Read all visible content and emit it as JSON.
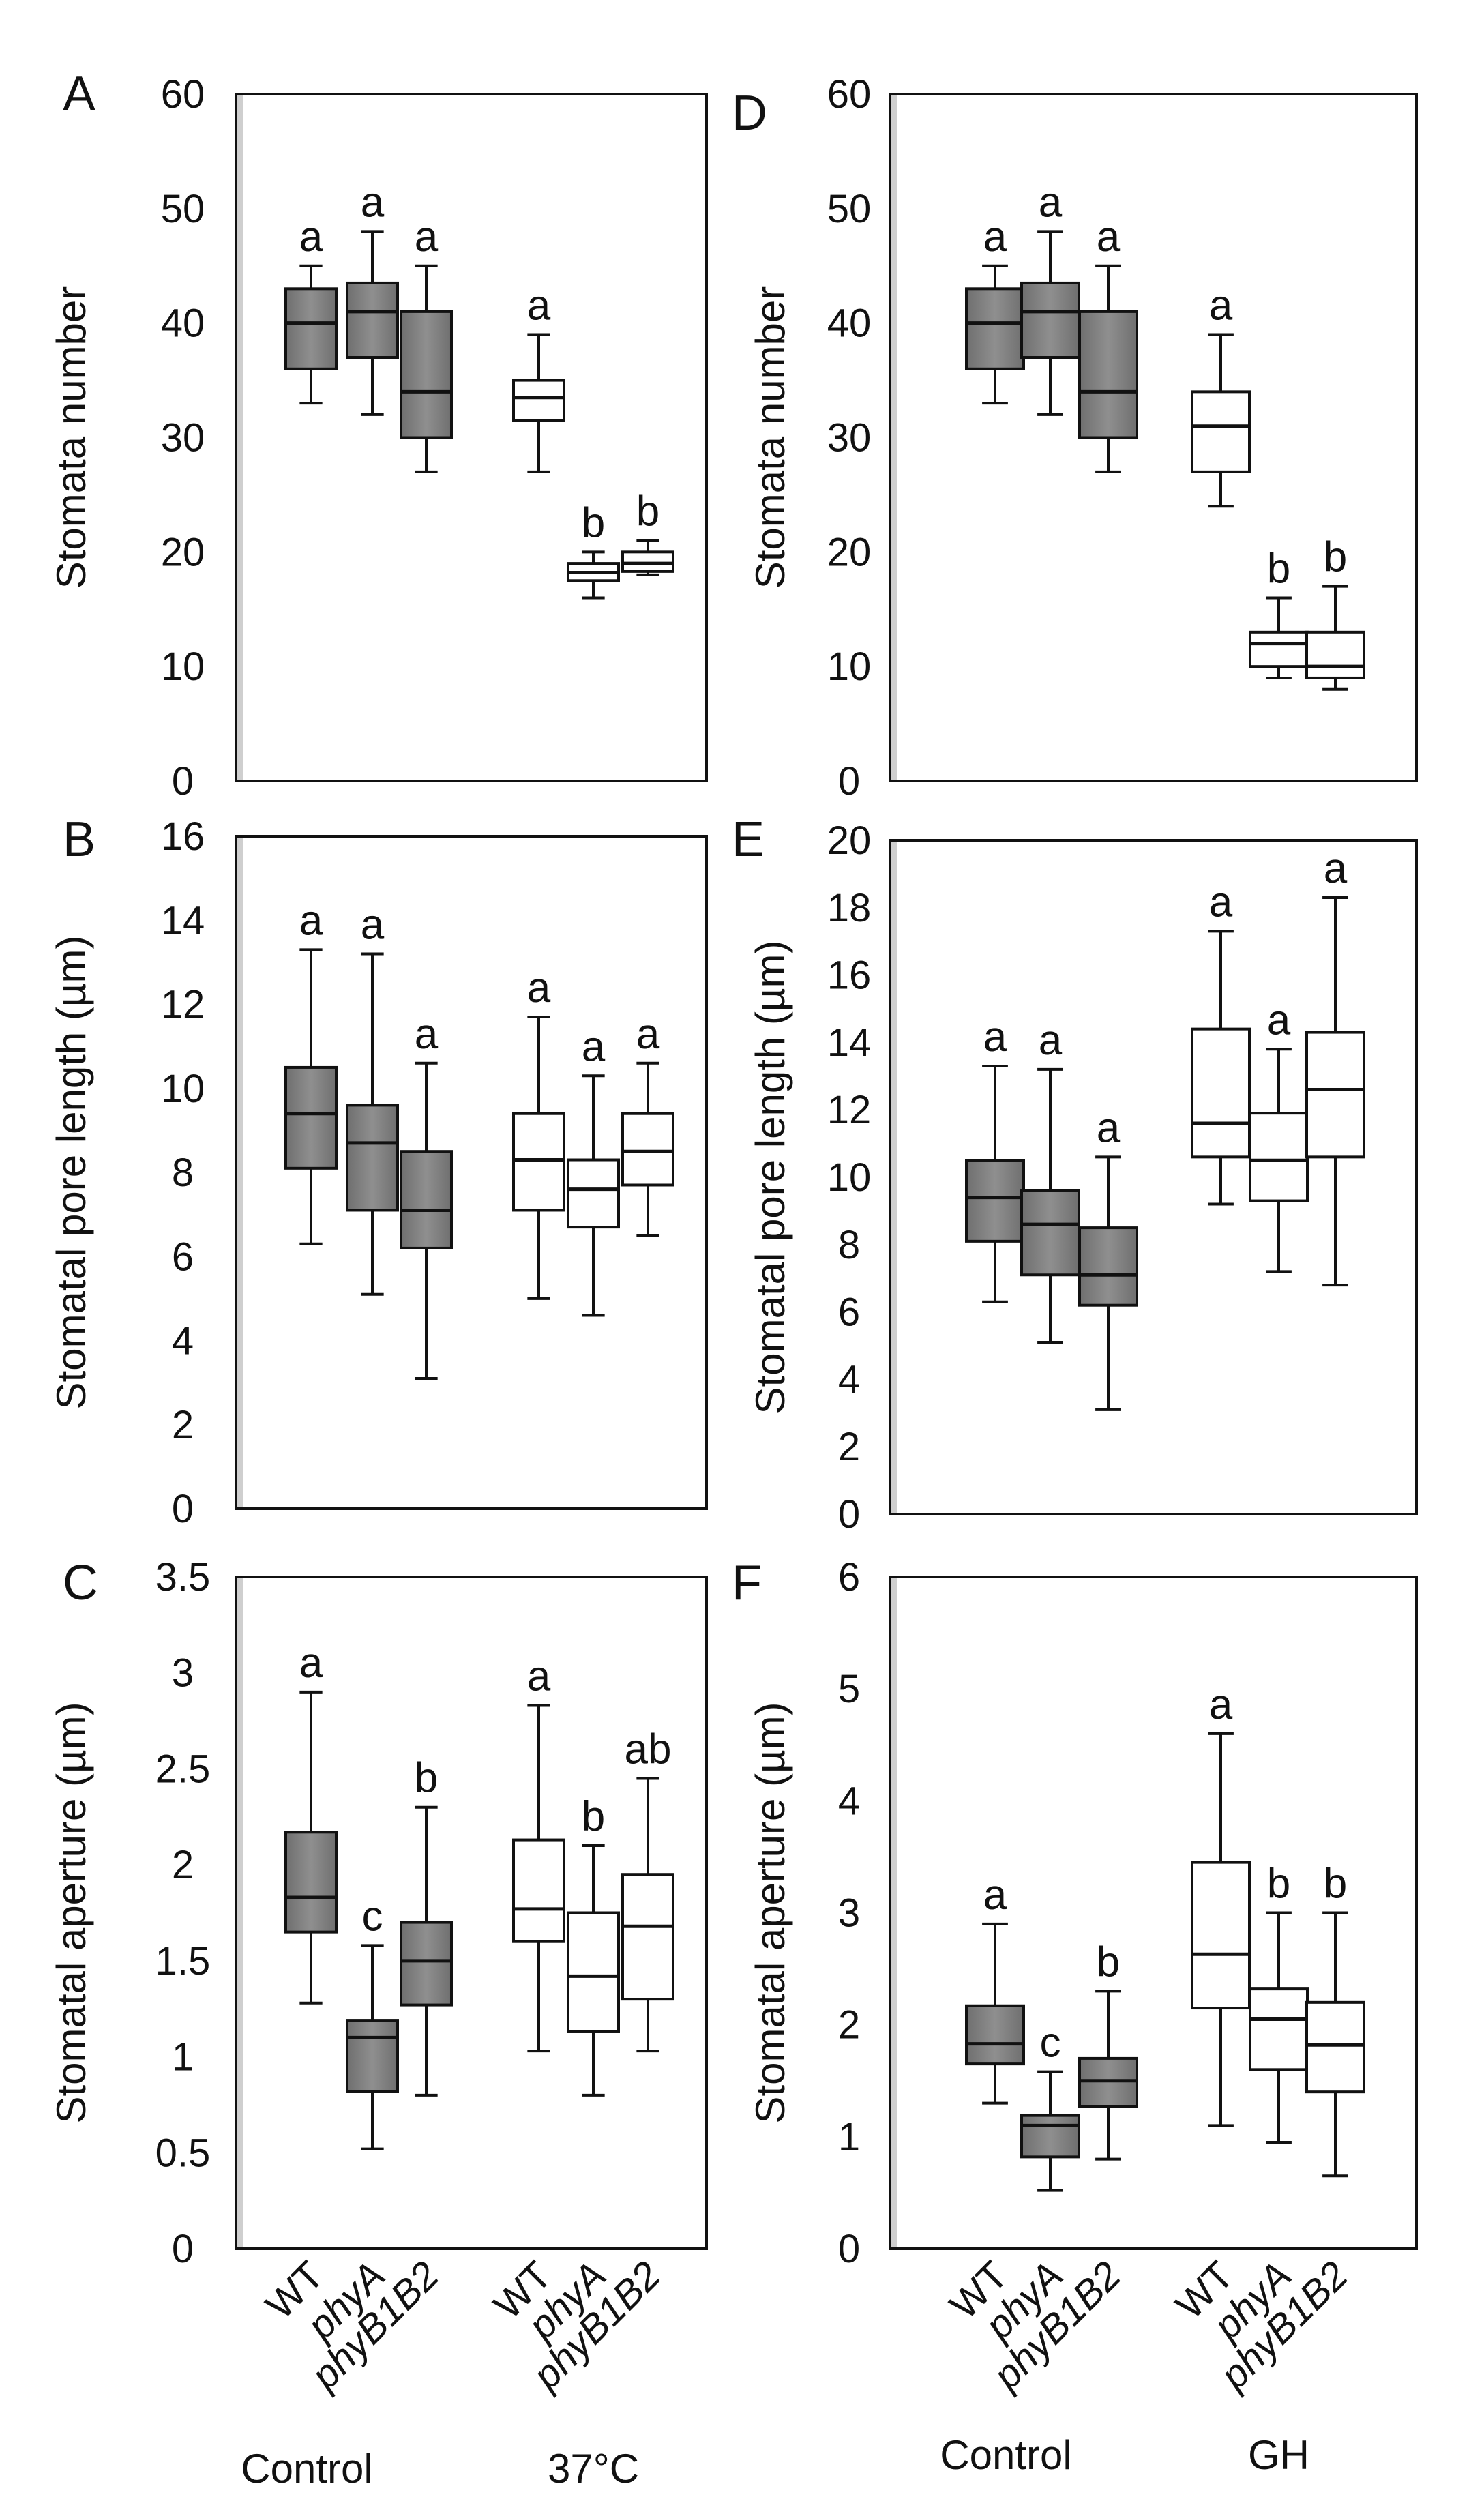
{
  "chart_data": [
    {
      "type": "box",
      "panel_label": "A",
      "ylabel": "Stomata number",
      "ylim": [
        0,
        60
      ],
      "yticks": [
        0,
        10,
        20,
        30,
        40,
        50,
        60
      ],
      "boxes": [
        {
          "name": "WT",
          "group": "Control",
          "fill": "gray",
          "min": 33,
          "q1": 36,
          "median": 40,
          "q3": 43,
          "max": 45,
          "sig": "a"
        },
        {
          "name": "phyA",
          "group": "Control",
          "fill": "gray",
          "min": 32,
          "q1": 37,
          "median": 41,
          "q3": 43.5,
          "max": 48,
          "sig": "a"
        },
        {
          "name": "phyB1B2",
          "group": "Control",
          "fill": "gray",
          "min": 27,
          "q1": 30,
          "median": 34,
          "q3": 41,
          "max": 45,
          "sig": "a"
        },
        {
          "name": "WT",
          "group": "37°C",
          "fill": "white",
          "min": 27,
          "q1": 31.5,
          "median": 33.5,
          "q3": 35,
          "max": 39,
          "sig": "a"
        },
        {
          "name": "phyA",
          "group": "37°C",
          "fill": "white",
          "min": 16,
          "q1": 17.5,
          "median": 18.2,
          "q3": 19,
          "max": 20,
          "sig": "b"
        },
        {
          "name": "phyB1B2",
          "group": "37°C",
          "fill": "white",
          "min": 18,
          "q1": 18.3,
          "median": 19,
          "q3": 20,
          "max": 21,
          "sig": "b"
        }
      ]
    },
    {
      "type": "box",
      "panel_label": "B",
      "ylabel": "Stomatal pore length (µm)",
      "ylim": [
        0,
        16
      ],
      "yticks": [
        0,
        2,
        4,
        6,
        8,
        10,
        12,
        14,
        16
      ],
      "boxes": [
        {
          "name": "WT",
          "group": "Control",
          "fill": "gray",
          "min": 6.3,
          "q1": 8.1,
          "median": 9.4,
          "q3": 10.5,
          "max": 13.3,
          "sig": "a"
        },
        {
          "name": "phyA",
          "group": "Control",
          "fill": "gray",
          "min": 5.1,
          "q1": 7.1,
          "median": 8.7,
          "q3": 9.6,
          "max": 13.2,
          "sig": "a"
        },
        {
          "name": "phyB1B2",
          "group": "Control",
          "fill": "gray",
          "min": 3.1,
          "q1": 6.2,
          "median": 7.1,
          "q3": 8.5,
          "max": 10.6,
          "sig": "a"
        },
        {
          "name": "WT",
          "group": "37°C",
          "fill": "white",
          "min": 5.0,
          "q1": 7.1,
          "median": 8.3,
          "q3": 9.4,
          "max": 11.7,
          "sig": "a"
        },
        {
          "name": "phyA",
          "group": "37°C",
          "fill": "white",
          "min": 4.6,
          "q1": 6.7,
          "median": 7.6,
          "q3": 8.3,
          "max": 10.3,
          "sig": "a"
        },
        {
          "name": "phyB1B2",
          "group": "37°C",
          "fill": "white",
          "min": 6.5,
          "q1": 7.7,
          "median": 8.5,
          "q3": 9.4,
          "max": 10.6,
          "sig": "a"
        }
      ]
    },
    {
      "type": "box",
      "panel_label": "C",
      "ylabel": "Stomatal aperture (µm)",
      "ylim": [
        0,
        3.5
      ],
      "yticks": [
        0,
        0.5,
        1,
        1.5,
        2,
        2.5,
        3,
        3.5
      ],
      "yticklabels": [
        "0",
        "0.5",
        "1",
        "1.5",
        "2",
        "2.5",
        "3",
        "3.5"
      ],
      "boxes": [
        {
          "name": "WT",
          "group": "Control",
          "fill": "gray",
          "min": 1.28,
          "q1": 1.65,
          "median": 1.83,
          "q3": 2.17,
          "max": 2.9,
          "sig": "a"
        },
        {
          "name": "phyA",
          "group": "Control",
          "fill": "gray",
          "min": 0.52,
          "q1": 0.82,
          "median": 1.1,
          "q3": 1.19,
          "max": 1.58,
          "sig": "c"
        },
        {
          "name": "phyB1B2",
          "group": "Control",
          "fill": "gray",
          "min": 0.8,
          "q1": 1.27,
          "median": 1.5,
          "q3": 1.7,
          "max": 2.3,
          "sig": "b"
        },
        {
          "name": "WT",
          "group": "37°C",
          "fill": "white",
          "min": 1.03,
          "q1": 1.6,
          "median": 1.77,
          "q3": 2.13,
          "max": 2.83,
          "sig": "a"
        },
        {
          "name": "phyA",
          "group": "37°C",
          "fill": "white",
          "min": 0.8,
          "q1": 1.13,
          "median": 1.42,
          "q3": 1.75,
          "max": 2.1,
          "sig": "b"
        },
        {
          "name": "phyB1B2",
          "group": "37°C",
          "fill": "white",
          "min": 1.03,
          "q1": 1.3,
          "median": 1.68,
          "q3": 1.95,
          "max": 2.45,
          "sig": "ab"
        }
      ]
    },
    {
      "type": "box",
      "panel_label": "D",
      "ylabel": "Stomata number",
      "ylim": [
        0,
        60
      ],
      "yticks": [
        0,
        10,
        20,
        30,
        40,
        50,
        60
      ],
      "boxes": [
        {
          "name": "WT",
          "group": "Control",
          "fill": "gray",
          "min": 33,
          "q1": 36,
          "median": 40,
          "q3": 43,
          "max": 45,
          "sig": "a"
        },
        {
          "name": "phyA",
          "group": "Control",
          "fill": "gray",
          "min": 32,
          "q1": 37,
          "median": 41,
          "q3": 43.5,
          "max": 48,
          "sig": "a"
        },
        {
          "name": "phyB1B2",
          "group": "Control",
          "fill": "gray",
          "min": 27,
          "q1": 30,
          "median": 34,
          "q3": 41,
          "max": 45,
          "sig": "a"
        },
        {
          "name": "WT",
          "group": "GH",
          "fill": "white",
          "min": 24,
          "q1": 27,
          "median": 31,
          "q3": 34,
          "max": 39,
          "sig": "a"
        },
        {
          "name": "phyA",
          "group": "GH",
          "fill": "white",
          "min": 9,
          "q1": 10,
          "median": 12,
          "q3": 13,
          "max": 16,
          "sig": "b"
        },
        {
          "name": "phyB1B2",
          "group": "GH",
          "fill": "white",
          "min": 8,
          "q1": 9,
          "median": 10,
          "q3": 13,
          "max": 17,
          "sig": "b"
        }
      ]
    },
    {
      "type": "box",
      "panel_label": "E",
      "ylabel": "Stomatal pore length (µm)",
      "ylim": [
        0,
        20
      ],
      "yticks": [
        0,
        2,
        4,
        6,
        8,
        10,
        12,
        14,
        16,
        18,
        20
      ],
      "boxes": [
        {
          "name": "WT",
          "group": "Control",
          "fill": "gray",
          "min": 6.3,
          "q1": 8.1,
          "median": 9.4,
          "q3": 10.5,
          "max": 13.3,
          "sig": "a"
        },
        {
          "name": "phyA",
          "group": "Control",
          "fill": "gray",
          "min": 5.1,
          "q1": 7.1,
          "median": 8.6,
          "q3": 9.6,
          "max": 13.2,
          "sig": "a"
        },
        {
          "name": "phyB1B2",
          "group": "Control",
          "fill": "gray",
          "min": 3.1,
          "q1": 6.2,
          "median": 7.1,
          "q3": 8.5,
          "max": 10.6,
          "sig": "a"
        },
        {
          "name": "WT",
          "group": "GH",
          "fill": "white",
          "min": 9.2,
          "q1": 10.6,
          "median": 11.6,
          "q3": 14.4,
          "max": 17.3,
          "sig": "a"
        },
        {
          "name": "phyA",
          "group": "GH",
          "fill": "white",
          "min": 7.2,
          "q1": 9.3,
          "median": 10.5,
          "q3": 11.9,
          "max": 13.8,
          "sig": "a"
        },
        {
          "name": "phyB1B2",
          "group": "GH",
          "fill": "white",
          "min": 6.8,
          "q1": 10.6,
          "median": 12.6,
          "q3": 14.3,
          "max": 18.3,
          "sig": "a"
        }
      ]
    },
    {
      "type": "box",
      "panel_label": "F",
      "ylabel": "Stomatal aperture (µm)",
      "ylim": [
        0,
        6
      ],
      "yticks": [
        0,
        1,
        2,
        3,
        4,
        5,
        6
      ],
      "boxes": [
        {
          "name": "WT",
          "group": "Control",
          "fill": "gray",
          "min": 1.3,
          "q1": 1.65,
          "median": 1.83,
          "q3": 2.17,
          "max": 2.9,
          "sig": "a"
        },
        {
          "name": "phyA",
          "group": "Control",
          "fill": "gray",
          "min": 0.52,
          "q1": 0.82,
          "median": 1.1,
          "q3": 1.19,
          "max": 1.58,
          "sig": "c"
        },
        {
          "name": "phyB1B2",
          "group": "Control",
          "fill": "gray",
          "min": 0.8,
          "q1": 1.27,
          "median": 1.5,
          "q3": 1.7,
          "max": 2.3,
          "sig": "b"
        },
        {
          "name": "WT",
          "group": "GH",
          "fill": "white",
          "min": 1.1,
          "q1": 2.15,
          "median": 2.63,
          "q3": 3.45,
          "max": 4.6,
          "sig": "a"
        },
        {
          "name": "phyA",
          "group": "GH",
          "fill": "white",
          "min": 0.95,
          "q1": 1.6,
          "median": 2.05,
          "q3": 2.32,
          "max": 3.0,
          "sig": "b"
        },
        {
          "name": "phyB1B2",
          "group": "GH",
          "fill": "white",
          "min": 0.65,
          "q1": 1.4,
          "median": 1.82,
          "q3": 2.2,
          "max": 3.0,
          "sig": "b"
        }
      ]
    }
  ],
  "x_axis": {
    "left": {
      "labels": [
        "WT",
        "phyA",
        "phyB1B2"
      ],
      "groups": [
        "Control",
        "37°C"
      ]
    },
    "right": {
      "labels": [
        "WT",
        "phyA",
        "phyB1B2"
      ],
      "groups": [
        "Control",
        "GH"
      ]
    }
  },
  "colors": {
    "gray_fill": "#808080",
    "white_fill": "#ffffff",
    "frame_left_gray": "#cfcfcf"
  }
}
